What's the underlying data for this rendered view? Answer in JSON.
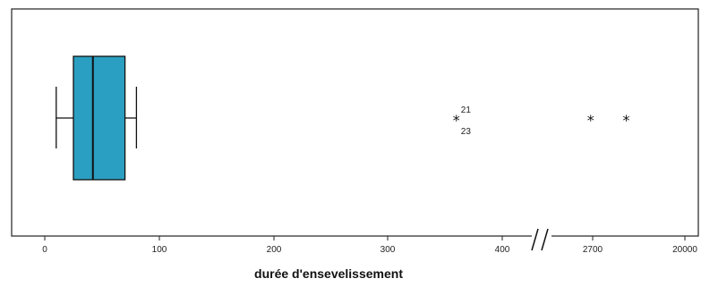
{
  "chart_data": {
    "type": "boxplot",
    "title": "",
    "xlabel": "durée d'ensevelissement",
    "ylabel": "",
    "orientation": "horizontal",
    "axis_break": true,
    "ticks": [
      {
        "value": 0,
        "label": "0"
      },
      {
        "value": 100,
        "label": "100"
      },
      {
        "value": 200,
        "label": "200"
      },
      {
        "value": 300,
        "label": "300"
      },
      {
        "value": 400,
        "label": "400"
      },
      {
        "value": 2700,
        "label": "2700"
      },
      {
        "value": 20000,
        "label": "20000"
      }
    ],
    "box": {
      "min": 10,
      "q1": 25,
      "median": 42,
      "q3": 70,
      "max": 80
    },
    "outliers": [
      {
        "value": 360,
        "labels": [
          "21",
          "23"
        ]
      },
      {
        "value": 2650,
        "labels": []
      },
      {
        "value": 9000,
        "labels": []
      }
    ],
    "colors": {
      "box_fill": "#2b9fc1",
      "line": "#111111"
    }
  }
}
